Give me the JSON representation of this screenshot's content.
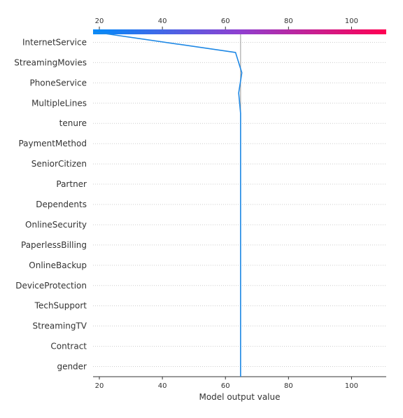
{
  "chart_data": {
    "type": "line",
    "subtype": "decision_plot",
    "xlabel": "Model output value",
    "xlim": [
      18,
      111
    ],
    "xticks": [
      20,
      40,
      60,
      80,
      100
    ],
    "base_value": 64.8,
    "features": [
      "InternetService",
      "StreamingMovies",
      "PhoneService",
      "MultipleLines",
      "tenure",
      "PaymentMethod",
      "SeniorCitizen",
      "Partner",
      "Dependents",
      "OnlineSecurity",
      "PaperlessBilling",
      "OnlineBackup",
      "DeviceProtection",
      "TechSupport",
      "StreamingTV",
      "Contract",
      "gender"
    ],
    "series": [
      {
        "values": [
          18.0,
          63.2,
          65.2,
          64.2,
          64.8,
          64.8,
          64.8,
          64.8,
          64.8,
          64.8,
          64.8,
          64.8,
          64.8,
          64.8,
          64.8,
          64.8,
          64.8,
          64.8
        ]
      }
    ],
    "line_color": "#1e88e5",
    "colorbar": {
      "from": "#008bfb",
      "to": "#ff0052"
    },
    "grid": "dotted horizontal"
  }
}
